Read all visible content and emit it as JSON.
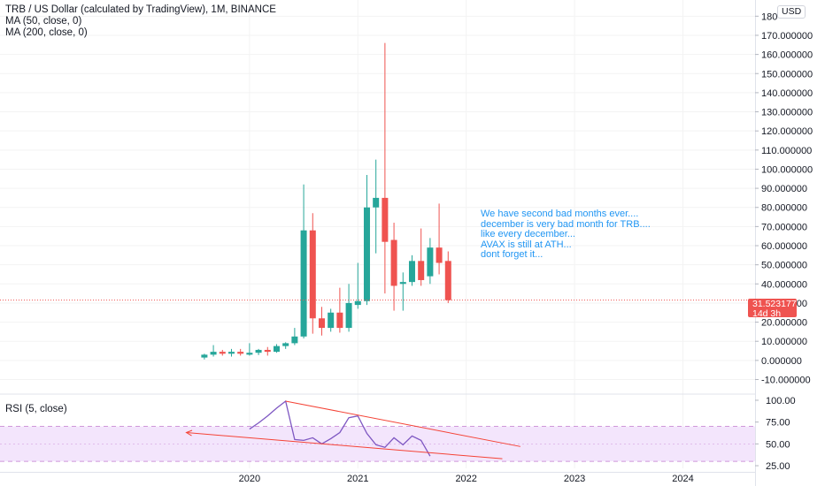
{
  "chart_title": "TRB / US Dollar (calculated by TradingView), 1M, BINANCE",
  "ma50_label": "MA (50, close, 0)",
  "ma200_label": "MA (200, close, 0)",
  "rsi_label": "RSI (5, close)",
  "currency_badge": "USD",
  "last_price": "31.523177",
  "countdown": "14d 3h",
  "annotation": [
    "We have second bad months ever....",
    "december is very bad month for TRB....",
    "like every december...",
    "AVAX is still at ATH...",
    "dont forget it..."
  ],
  "colors": {
    "up": "#26a69a",
    "down": "#ef5350",
    "rsi_line": "#7e57c2",
    "rsi_band": "#f3e5fc",
    "trendline": "#f44336",
    "note": "#2196f3"
  },
  "chart_data": {
    "type": "candlestick",
    "price_ticks": [
      "180",
      "170.000000",
      "160.000000",
      "150.000000",
      "140.000000",
      "130.000000",
      "120.000000",
      "110.000000",
      "100.000000",
      "90.000000",
      "80.000000",
      "70.000000",
      "60.000000",
      "50.000000",
      "40.000000",
      "30.000000",
      "20.000000",
      "10.000000",
      "0.000000",
      "-10.000000"
    ],
    "price_range": [
      -13,
      182
    ],
    "rsi_ticks": [
      "100.00",
      "75.00",
      "50.00",
      "25.00"
    ],
    "rsi_range": [
      22,
      103
    ],
    "rsi_band": [
      30,
      70
    ],
    "time_labels": [
      "2020",
      "2021",
      "2022",
      "2023",
      "2024"
    ],
    "candles": [
      {
        "t": "2019-08",
        "o": 1.5,
        "h": 3.5,
        "l": 0.5,
        "c": 3.0
      },
      {
        "t": "2019-09",
        "o": 3.0,
        "h": 8.0,
        "l": 2.0,
        "c": 4.5
      },
      {
        "t": "2019-10",
        "o": 4.5,
        "h": 5.5,
        "l": 2.5,
        "c": 3.5
      },
      {
        "t": "2019-11",
        "o": 3.5,
        "h": 6.0,
        "l": 2.0,
        "c": 4.5
      },
      {
        "t": "2019-12",
        "o": 4.5,
        "h": 6.0,
        "l": 2.5,
        "c": 3.5
      },
      {
        "t": "2020-01",
        "o": 3.0,
        "h": 9.0,
        "l": 2.5,
        "c": 4.0
      },
      {
        "t": "2020-02",
        "o": 4.0,
        "h": 6.0,
        "l": 2.8,
        "c": 5.5
      },
      {
        "t": "2020-03",
        "o": 5.5,
        "h": 7.0,
        "l": 2.5,
        "c": 4.5
      },
      {
        "t": "2020-04",
        "o": 4.5,
        "h": 8.5,
        "l": 4.0,
        "c": 7.5
      },
      {
        "t": "2020-05",
        "o": 7.5,
        "h": 9.5,
        "l": 6.0,
        "c": 9.0
      },
      {
        "t": "2020-06",
        "o": 9.0,
        "h": 17.0,
        "l": 8.0,
        "c": 12.5
      },
      {
        "t": "2020-07",
        "o": 12.5,
        "h": 92.0,
        "l": 11.5,
        "c": 68.0
      },
      {
        "t": "2020-08",
        "o": 68.0,
        "h": 77.0,
        "l": 14.0,
        "c": 22.0
      },
      {
        "t": "2020-09",
        "o": 22.0,
        "h": 28.0,
        "l": 13.0,
        "c": 17.0
      },
      {
        "t": "2020-10",
        "o": 17.0,
        "h": 27.0,
        "l": 15.0,
        "c": 25.0
      },
      {
        "t": "2020-11",
        "o": 25.0,
        "h": 38.0,
        "l": 14.5,
        "c": 17.0
      },
      {
        "t": "2020-12",
        "o": 17.0,
        "h": 40.0,
        "l": 15.0,
        "c": 30.0
      },
      {
        "t": "2021-01",
        "o": 29.0,
        "h": 51.0,
        "l": 27.0,
        "c": 31.0
      },
      {
        "t": "2021-02",
        "o": 31.0,
        "h": 97.0,
        "l": 29.0,
        "c": 80.0
      },
      {
        "t": "2021-03",
        "o": 80.0,
        "h": 105.0,
        "l": 56.0,
        "c": 85.0
      },
      {
        "t": "2021-04",
        "o": 85.0,
        "h": 166.0,
        "l": 35.0,
        "c": 62.0
      },
      {
        "t": "2021-05",
        "o": 63.0,
        "h": 72.0,
        "l": 26.0,
        "c": 39.0
      },
      {
        "t": "2021-06",
        "o": 40.0,
        "h": 46.0,
        "l": 26.0,
        "c": 41.0
      },
      {
        "t": "2021-07",
        "o": 41.0,
        "h": 55.0,
        "l": 39.0,
        "c": 52.0
      },
      {
        "t": "2021-08",
        "o": 52.0,
        "h": 69.0,
        "l": 39.0,
        "c": 42.0
      },
      {
        "t": "2021-09",
        "o": 44.0,
        "h": 64.0,
        "l": 40.0,
        "c": 59.0
      },
      {
        "t": "2021-10",
        "o": 59.0,
        "h": 82.0,
        "l": 45.0,
        "c": 51.0
      },
      {
        "t": "2021-11",
        "o": 52.0,
        "h": 57.0,
        "l": 30.0,
        "c": 31.52
      }
    ],
    "rsi": [
      {
        "t": "2020-01",
        "v": 67
      },
      {
        "t": "2020-02",
        "v": 74
      },
      {
        "t": "2020-03",
        "v": 82
      },
      {
        "t": "2020-04",
        "v": 91
      },
      {
        "t": "2020-05",
        "v": 99
      },
      {
        "t": "2020-06",
        "v": 55
      },
      {
        "t": "2020-07",
        "v": 54
      },
      {
        "t": "2020-08",
        "v": 57
      },
      {
        "t": "2020-09",
        "v": 50
      },
      {
        "t": "2020-10",
        "v": 56
      },
      {
        "t": "2020-11",
        "v": 63
      },
      {
        "t": "2020-12",
        "v": 80
      },
      {
        "t": "2021-01",
        "v": 82
      },
      {
        "t": "2021-02",
        "v": 62
      },
      {
        "t": "2021-03",
        "v": 49
      },
      {
        "t": "2021-04",
        "v": 46
      },
      {
        "t": "2021-05",
        "v": 57
      },
      {
        "t": "2021-06",
        "v": 49
      },
      {
        "t": "2021-07",
        "v": 59
      },
      {
        "t": "2021-08",
        "v": 54
      },
      {
        "t": "2021-09",
        "v": 36
      }
    ],
    "price_trendlines": [],
    "rsi_trendlines": [
      {
        "from": {
          "t": "2020-05",
          "v": 99
        },
        "to": {
          "t": "2022-07",
          "v": 47
        },
        "arrow": false
      },
      {
        "from": {
          "t": "2022-05",
          "v": 33
        },
        "to": {
          "t": "2019-06",
          "v": 63
        },
        "arrow": true
      }
    ]
  }
}
